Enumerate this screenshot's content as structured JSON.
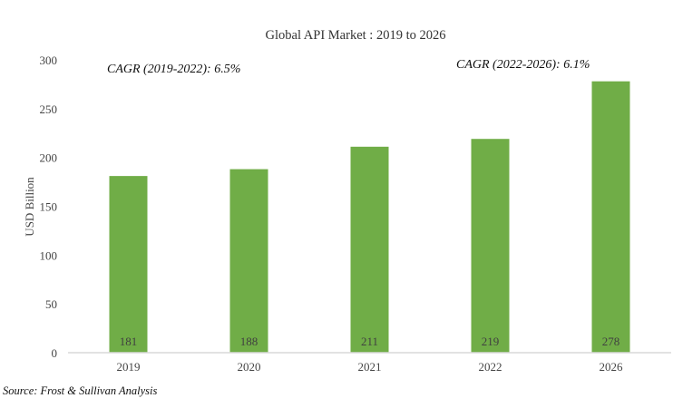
{
  "chart_data": {
    "type": "bar",
    "title": "Global API Market : 2019 to 2026",
    "xlabel": "",
    "ylabel": "USD Billion",
    "categories": [
      "2019",
      "2020",
      "2021",
      "2022",
      "2026"
    ],
    "values": [
      181,
      188,
      211,
      219,
      278
    ],
    "data_labels": [
      "181",
      "188",
      "211",
      "219",
      "278"
    ],
    "ylim": [
      0,
      300
    ],
    "yticks": [
      "0",
      "50",
      "100",
      "150",
      "200",
      "250",
      "300"
    ],
    "grid": false,
    "bar_color": "#70ad47",
    "annotations": [
      "CAGR (2019-2022): 6.5%",
      "CAGR (2022-2026): 6.1%"
    ]
  },
  "source": "Source: Frost & Sullivan Analysis"
}
